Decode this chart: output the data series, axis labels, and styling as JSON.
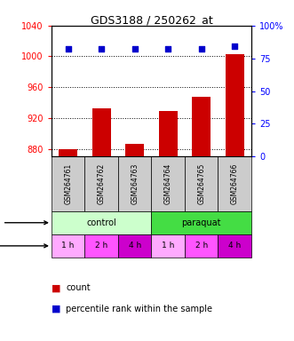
{
  "title": "GDS3188 / 250262_at",
  "samples": [
    "GSM264761",
    "GSM264762",
    "GSM264763",
    "GSM264764",
    "GSM264765",
    "GSM264766"
  ],
  "count_values": [
    879,
    933,
    887,
    929,
    948,
    1003
  ],
  "percentile_values": [
    82,
    82,
    82,
    82,
    82,
    84
  ],
  "ylim_left": [
    870,
    1040
  ],
  "ylim_right": [
    0,
    100
  ],
  "yticks_left": [
    880,
    920,
    960,
    1000,
    1040
  ],
  "yticks_right": [
    0,
    25,
    50,
    75,
    100
  ],
  "ytick_right_labels": [
    "0",
    "25",
    "50",
    "75",
    "100%"
  ],
  "bar_color": "#cc0000",
  "scatter_color": "#0000cc",
  "agent_groups": [
    {
      "label": "control",
      "start": 0,
      "end": 3,
      "color": "#ccffcc"
    },
    {
      "label": "paraquat",
      "start": 3,
      "end": 6,
      "color": "#44dd44"
    }
  ],
  "time_labels": [
    "1 h",
    "2 h",
    "4 h",
    "1 h",
    "2 h",
    "4 h"
  ],
  "time_bg_colors": [
    "#ffaaff",
    "#ff55ff",
    "#cc00cc",
    "#ffaaff",
    "#ff55ff",
    "#cc00cc"
  ],
  "gsm_bg_color": "#cccccc",
  "legend_count_color": "#cc0000",
  "legend_pct_color": "#0000cc",
  "hgrid_values": [
    880,
    920,
    960,
    1000
  ],
  "bar_bottom": 870
}
